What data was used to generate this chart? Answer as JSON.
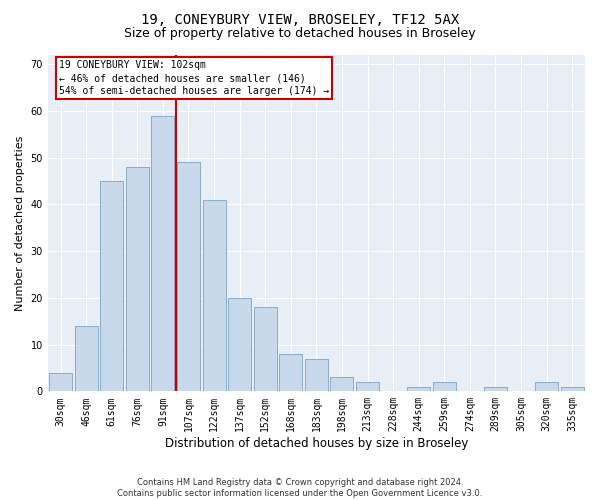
{
  "title1": "19, CONEYBURY VIEW, BROSELEY, TF12 5AX",
  "title2": "Size of property relative to detached houses in Broseley",
  "xlabel": "Distribution of detached houses by size in Broseley",
  "ylabel": "Number of detached properties",
  "bar_labels": [
    "30sqm",
    "46sqm",
    "61sqm",
    "76sqm",
    "91sqm",
    "107sqm",
    "122sqm",
    "137sqm",
    "152sqm",
    "168sqm",
    "183sqm",
    "198sqm",
    "213sqm",
    "228sqm",
    "244sqm",
    "259sqm",
    "274sqm",
    "289sqm",
    "305sqm",
    "320sqm",
    "335sqm"
  ],
  "bar_values": [
    4,
    14,
    45,
    48,
    59,
    49,
    41,
    20,
    18,
    8,
    7,
    3,
    2,
    0,
    1,
    2,
    0,
    1,
    0,
    2,
    1
  ],
  "bar_color": "#c9d9ec",
  "bar_edge_color": "#6a96b8",
  "vline_x": 5,
  "vline_color": "#cc0000",
  "annotation_text": "19 CONEYBURY VIEW: 102sqm\n← 46% of detached houses are smaller (146)\n54% of semi-detached houses are larger (174) →",
  "annotation_box_color": "#ffffff",
  "annotation_box_edge": "#cc0000",
  "ylim": [
    0,
    72
  ],
  "yticks": [
    0,
    10,
    20,
    30,
    40,
    50,
    60,
    70
  ],
  "plot_bg": "#e8eef5",
  "footnote": "Contains HM Land Registry data © Crown copyright and database right 2024.\nContains public sector information licensed under the Open Government Licence v3.0.",
  "title1_fontsize": 10,
  "title2_fontsize": 9,
  "xlabel_fontsize": 8.5,
  "ylabel_fontsize": 8,
  "tick_fontsize": 7,
  "footnote_fontsize": 6,
  "annot_fontsize": 7
}
